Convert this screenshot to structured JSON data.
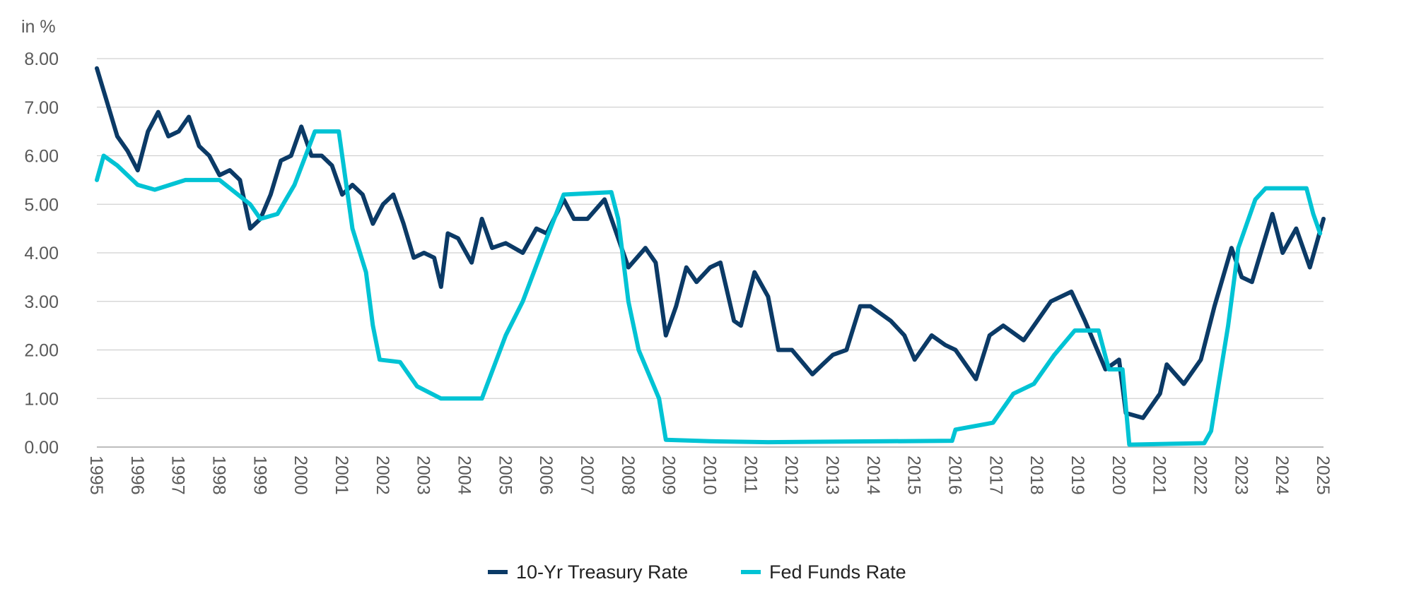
{
  "chart_data": {
    "type": "line",
    "ylabel": "in %",
    "ylim": [
      0,
      8
    ],
    "yticks": [
      "0.00",
      "1.00",
      "2.00",
      "3.00",
      "4.00",
      "5.00",
      "6.00",
      "7.00",
      "8.00"
    ],
    "xlim": [
      "1995-01",
      "2025-01"
    ],
    "xticks": [
      "1995",
      "1996",
      "1997",
      "1998",
      "1999",
      "2000",
      "2001",
      "2002",
      "2003",
      "2004",
      "2005",
      "2006",
      "2007",
      "2008",
      "2009",
      "2010",
      "2011",
      "2012",
      "2013",
      "2014",
      "2015",
      "2016",
      "2017",
      "2018",
      "2019",
      "2020",
      "2021",
      "2022",
      "2023",
      "2024",
      "2025"
    ],
    "grid": "horizontal",
    "legend_position": "bottom",
    "series": [
      {
        "name": "10-Yr Treasury Rate",
        "color": "#0b3a66",
        "points": [
          [
            "1995-01",
            7.8
          ],
          [
            "1995-04",
            7.1
          ],
          [
            "1995-07",
            6.4
          ],
          [
            "1995-10",
            6.1
          ],
          [
            "1996-01",
            5.7
          ],
          [
            "1996-04",
            6.5
          ],
          [
            "1996-07",
            6.9
          ],
          [
            "1996-10",
            6.4
          ],
          [
            "1997-01",
            6.5
          ],
          [
            "1997-04",
            6.8
          ],
          [
            "1997-07",
            6.2
          ],
          [
            "1997-10",
            6.0
          ],
          [
            "1998-01",
            5.6
          ],
          [
            "1998-04",
            5.7
          ],
          [
            "1998-07",
            5.5
          ],
          [
            "1998-10",
            4.5
          ],
          [
            "1999-01",
            4.7
          ],
          [
            "1999-04",
            5.2
          ],
          [
            "1999-07",
            5.9
          ],
          [
            "1999-10",
            6.0
          ],
          [
            "2000-01",
            6.6
          ],
          [
            "2000-04",
            6.0
          ],
          [
            "2000-07",
            6.0
          ],
          [
            "2000-10",
            5.8
          ],
          [
            "2001-01",
            5.2
          ],
          [
            "2001-04",
            5.4
          ],
          [
            "2001-07",
            5.2
          ],
          [
            "2001-10",
            4.6
          ],
          [
            "2002-01",
            5.0
          ],
          [
            "2002-04",
            5.2
          ],
          [
            "2002-07",
            4.6
          ],
          [
            "2002-10",
            3.9
          ],
          [
            "2003-01",
            4.0
          ],
          [
            "2003-04",
            3.9
          ],
          [
            "2003-06",
            3.3
          ],
          [
            "2003-08",
            4.4
          ],
          [
            "2003-11",
            4.3
          ],
          [
            "2004-03",
            3.8
          ],
          [
            "2004-06",
            4.7
          ],
          [
            "2004-09",
            4.1
          ],
          [
            "2005-01",
            4.2
          ],
          [
            "2005-06",
            4.0
          ],
          [
            "2005-10",
            4.5
          ],
          [
            "2006-01",
            4.4
          ],
          [
            "2006-06",
            5.1
          ],
          [
            "2006-09",
            4.7
          ],
          [
            "2007-01",
            4.7
          ],
          [
            "2007-06",
            5.1
          ],
          [
            "2007-09",
            4.5
          ],
          [
            "2008-01",
            3.7
          ],
          [
            "2008-06",
            4.1
          ],
          [
            "2008-09",
            3.8
          ],
          [
            "2008-12",
            2.3
          ],
          [
            "2009-03",
            2.9
          ],
          [
            "2009-06",
            3.7
          ],
          [
            "2009-09",
            3.4
          ],
          [
            "2010-01",
            3.7
          ],
          [
            "2010-04",
            3.8
          ],
          [
            "2010-08",
            2.6
          ],
          [
            "2010-10",
            2.5
          ],
          [
            "2011-02",
            3.6
          ],
          [
            "2011-06",
            3.1
          ],
          [
            "2011-09",
            2.0
          ],
          [
            "2012-01",
            2.0
          ],
          [
            "2012-07",
            1.5
          ],
          [
            "2012-10",
            1.7
          ],
          [
            "2013-01",
            1.9
          ],
          [
            "2013-05",
            2.0
          ],
          [
            "2013-09",
            2.9
          ],
          [
            "2013-12",
            2.9
          ],
          [
            "2014-06",
            2.6
          ],
          [
            "2014-10",
            2.3
          ],
          [
            "2015-01",
            1.8
          ],
          [
            "2015-06",
            2.3
          ],
          [
            "2015-10",
            2.1
          ],
          [
            "2016-01",
            2.0
          ],
          [
            "2016-07",
            1.4
          ],
          [
            "2016-11",
            2.3
          ],
          [
            "2017-03",
            2.5
          ],
          [
            "2017-09",
            2.2
          ],
          [
            "2018-01",
            2.6
          ],
          [
            "2018-05",
            3.0
          ],
          [
            "2018-11",
            3.2
          ],
          [
            "2019-03",
            2.6
          ],
          [
            "2019-09",
            1.6
          ],
          [
            "2020-01",
            1.8
          ],
          [
            "2020-03",
            0.7
          ],
          [
            "2020-08",
            0.6
          ],
          [
            "2021-01",
            1.1
          ],
          [
            "2021-03",
            1.7
          ],
          [
            "2021-08",
            1.3
          ],
          [
            "2022-01",
            1.8
          ],
          [
            "2022-05",
            2.9
          ],
          [
            "2022-10",
            4.1
          ],
          [
            "2023-01",
            3.5
          ],
          [
            "2023-04",
            3.4
          ],
          [
            "2023-10",
            4.8
          ],
          [
            "2024-01",
            4.0
          ],
          [
            "2024-05",
            4.5
          ],
          [
            "2024-09",
            3.7
          ],
          [
            "2025-01",
            4.7
          ]
        ]
      },
      {
        "name": "Fed Funds Rate",
        "color": "#00c3d4",
        "points": [
          [
            "1995-01",
            5.5
          ],
          [
            "1995-03",
            6.0
          ],
          [
            "1995-07",
            5.8
          ],
          [
            "1996-01",
            5.4
          ],
          [
            "1996-06",
            5.3
          ],
          [
            "1997-03",
            5.5
          ],
          [
            "1998-01",
            5.5
          ],
          [
            "1998-10",
            5.0
          ],
          [
            "1999-01",
            4.7
          ],
          [
            "1999-06",
            4.8
          ],
          [
            "1999-11",
            5.4
          ],
          [
            "2000-05",
            6.5
          ],
          [
            "2000-12",
            6.5
          ],
          [
            "2001-01",
            6.0
          ],
          [
            "2001-04",
            4.5
          ],
          [
            "2001-08",
            3.6
          ],
          [
            "2001-10",
            2.5
          ],
          [
            "2001-12",
            1.8
          ],
          [
            "2002-06",
            1.75
          ],
          [
            "2002-11",
            1.25
          ],
          [
            "2003-06",
            1.0
          ],
          [
            "2004-06",
            1.0
          ],
          [
            "2005-01",
            2.3
          ],
          [
            "2005-06",
            3.0
          ],
          [
            "2006-01",
            4.3
          ],
          [
            "2006-06",
            5.2
          ],
          [
            "2007-08",
            5.25
          ],
          [
            "2007-10",
            4.7
          ],
          [
            "2008-01",
            3.0
          ],
          [
            "2008-04",
            2.0
          ],
          [
            "2008-10",
            1.0
          ],
          [
            "2008-12",
            0.15
          ],
          [
            "2010-01",
            0.12
          ],
          [
            "2011-06",
            0.1
          ],
          [
            "2015-12",
            0.13
          ],
          [
            "2016-01",
            0.36
          ],
          [
            "2016-12",
            0.5
          ],
          [
            "2017-06",
            1.1
          ],
          [
            "2017-12",
            1.3
          ],
          [
            "2018-06",
            1.9
          ],
          [
            "2018-12",
            2.4
          ],
          [
            "2019-07",
            2.4
          ],
          [
            "2019-10",
            1.6
          ],
          [
            "2020-02",
            1.6
          ],
          [
            "2020-04",
            0.05
          ],
          [
            "2022-02",
            0.08
          ],
          [
            "2022-04",
            0.33
          ],
          [
            "2022-06",
            1.2
          ],
          [
            "2022-09",
            2.5
          ],
          [
            "2022-12",
            4.1
          ],
          [
            "2023-05",
            5.1
          ],
          [
            "2023-08",
            5.33
          ],
          [
            "2024-08",
            5.33
          ],
          [
            "2024-10",
            4.8
          ],
          [
            "2024-12",
            4.4
          ]
        ]
      }
    ]
  }
}
